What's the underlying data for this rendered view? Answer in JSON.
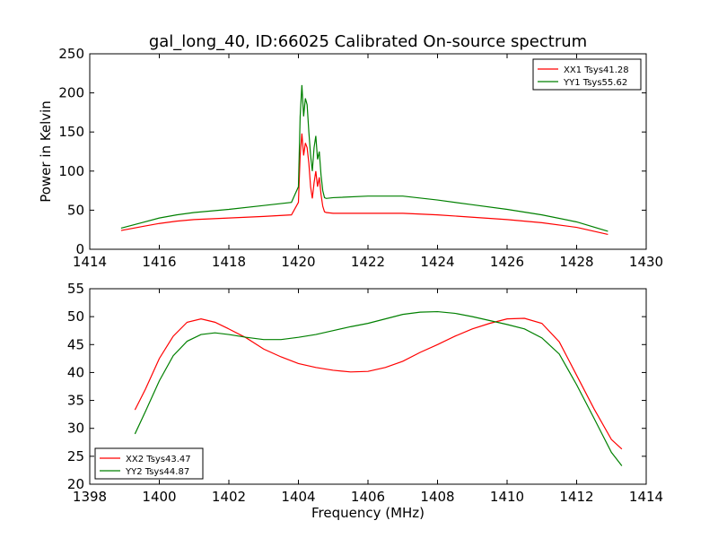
{
  "chart_data": [
    {
      "type": "line",
      "title": "gal_long_40, ID:66025 Calibrated On-source spectrum",
      "xlabel": "",
      "ylabel": "Power in Kelvin",
      "xlim": [
        1414,
        1430
      ],
      "ylim": [
        0,
        250
      ],
      "xticks": [
        1414,
        1416,
        1418,
        1420,
        1422,
        1424,
        1426,
        1428,
        1430
      ],
      "yticks": [
        0,
        50,
        100,
        150,
        200,
        250
      ],
      "grid": false,
      "legend_position": "upper right",
      "series": [
        {
          "name": "XX1 Tsys41.28",
          "color": "#ff0000",
          "x": [
            1414.9,
            1415.5,
            1416.0,
            1416.5,
            1417.0,
            1418.0,
            1419.0,
            1419.8,
            1420.0,
            1420.05,
            1420.1,
            1420.15,
            1420.2,
            1420.25,
            1420.3,
            1420.35,
            1420.4,
            1420.45,
            1420.5,
            1420.55,
            1420.6,
            1420.65,
            1420.7,
            1420.75,
            1420.8,
            1421.0,
            1422.0,
            1423.0,
            1424.0,
            1425.0,
            1426.0,
            1427.0,
            1428.0,
            1428.9
          ],
          "y": [
            24,
            29,
            33,
            36,
            38,
            40,
            42,
            44,
            60,
            120,
            148,
            120,
            136,
            130,
            110,
            80,
            65,
            85,
            100,
            80,
            92,
            70,
            55,
            48,
            47,
            46,
            46,
            46,
            44,
            41,
            38,
            34,
            28,
            19
          ]
        },
        {
          "name": "YY1 Tsys55.62",
          "color": "#008000",
          "x": [
            1414.9,
            1415.5,
            1416.0,
            1416.5,
            1417.0,
            1418.0,
            1419.0,
            1419.8,
            1420.0,
            1420.05,
            1420.1,
            1420.15,
            1420.2,
            1420.25,
            1420.3,
            1420.35,
            1420.4,
            1420.45,
            1420.5,
            1420.55,
            1420.6,
            1420.65,
            1420.7,
            1420.75,
            1420.8,
            1421.0,
            1422.0,
            1423.0,
            1424.0,
            1425.0,
            1426.0,
            1427.0,
            1428.0,
            1428.9
          ],
          "y": [
            27,
            34,
            40,
            44,
            47,
            51,
            56,
            60,
            80,
            170,
            210,
            170,
            193,
            185,
            150,
            120,
            100,
            130,
            145,
            115,
            125,
            95,
            75,
            66,
            65,
            66,
            68,
            68,
            63,
            57,
            51,
            44,
            35,
            23
          ]
        }
      ]
    },
    {
      "type": "line",
      "title": "",
      "xlabel": "Frequency (MHz)",
      "ylabel": "",
      "xlim": [
        1398,
        1414
      ],
      "ylim": [
        20,
        55
      ],
      "xticks": [
        1398,
        1400,
        1402,
        1404,
        1406,
        1408,
        1410,
        1412,
        1414
      ],
      "yticks": [
        20,
        25,
        30,
        35,
        40,
        45,
        50,
        55
      ],
      "grid": false,
      "legend_position": "lower left",
      "series": [
        {
          "name": "XX2 Tsys43.47",
          "color": "#ff0000",
          "x": [
            1399.3,
            1399.6,
            1400.0,
            1400.4,
            1400.8,
            1401.2,
            1401.6,
            1402.0,
            1402.5,
            1403.0,
            1403.5,
            1404.0,
            1404.5,
            1405.0,
            1405.5,
            1406.0,
            1406.5,
            1407.0,
            1407.5,
            1408.0,
            1408.5,
            1409.0,
            1409.5,
            1410.0,
            1410.5,
            1411.0,
            1411.5,
            1412.0,
            1412.5,
            1413.0,
            1413.3
          ],
          "y": [
            33.3,
            37,
            42.5,
            46.5,
            49,
            49.6,
            49,
            47.8,
            46.2,
            44.2,
            42.8,
            41.6,
            40.9,
            40.4,
            40.1,
            40.2,
            40.9,
            42.0,
            43.6,
            45.0,
            46.5,
            47.8,
            48.8,
            49.6,
            49.7,
            48.8,
            45.5,
            39.5,
            33.5,
            28.0,
            26.3
          ]
        },
        {
          "name": "YY2 Tsys44.87",
          "color": "#008000",
          "x": [
            1399.3,
            1399.6,
            1400.0,
            1400.4,
            1400.8,
            1401.2,
            1401.6,
            1402.0,
            1402.5,
            1403.0,
            1403.5,
            1404.0,
            1404.5,
            1405.0,
            1405.5,
            1406.0,
            1406.5,
            1407.0,
            1407.5,
            1408.0,
            1408.5,
            1409.0,
            1409.5,
            1410.0,
            1410.5,
            1411.0,
            1411.5,
            1412.0,
            1412.5,
            1413.0,
            1413.3
          ],
          "y": [
            29.0,
            33,
            38.5,
            43,
            45.6,
            46.8,
            47.1,
            46.8,
            46.3,
            45.9,
            45.9,
            46.3,
            46.8,
            47.5,
            48.2,
            48.8,
            49.6,
            50.4,
            50.8,
            50.9,
            50.6,
            50.0,
            49.3,
            48.6,
            47.8,
            46.2,
            43.3,
            37.8,
            31.8,
            25.7,
            23.3
          ]
        }
      ]
    }
  ]
}
